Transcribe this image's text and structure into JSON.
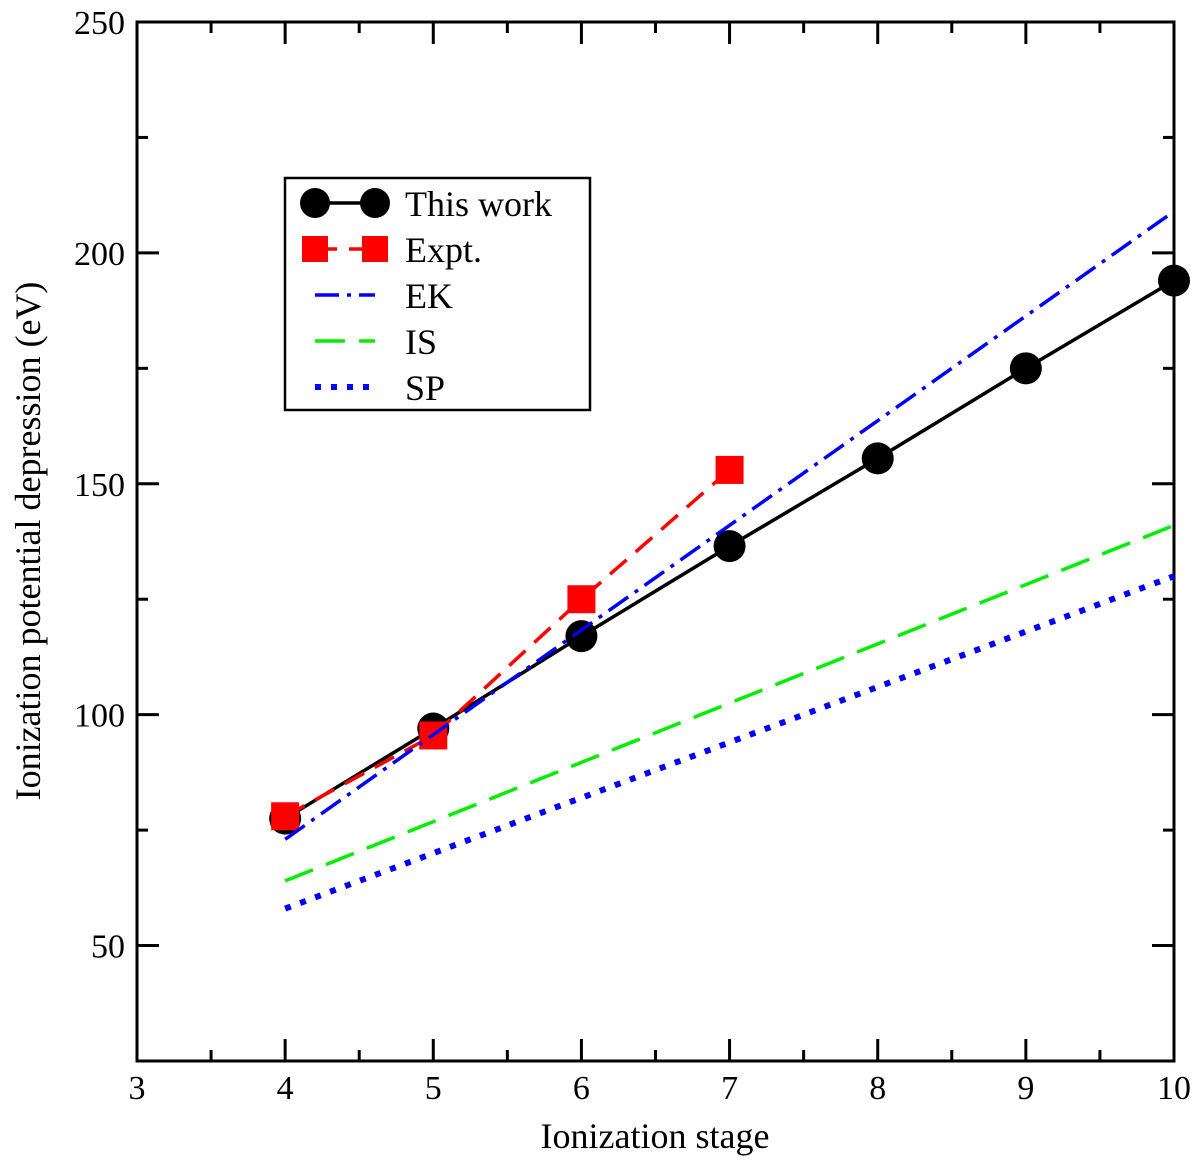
{
  "chart_data": {
    "type": "line",
    "xlabel": "Ionization stage",
    "ylabel": "Ionization potential depression (eV)",
    "xlim": [
      3,
      10
    ],
    "ylim": [
      25,
      250
    ],
    "xticks": [
      3,
      4,
      5,
      6,
      7,
      8,
      9,
      10
    ],
    "yticks": [
      50,
      100,
      150,
      200,
      250
    ],
    "legend_position": "upper-left",
    "series": [
      {
        "name": "This work",
        "style": "solid",
        "marker": "circle",
        "color": "#000000",
        "x": [
          4,
          5,
          6,
          7,
          8,
          9,
          10
        ],
        "y": [
          77.5,
          97,
          117,
          136.5,
          155.5,
          175,
          194
        ]
      },
      {
        "name": "Expt.",
        "style": "dashed",
        "marker": "square",
        "color": "#ff0000",
        "x": [
          4,
          5,
          6,
          7
        ],
        "y": [
          78,
          95.5,
          125,
          153
        ]
      },
      {
        "name": "EK",
        "style": "dashdot",
        "marker": "none",
        "color": "#0000ff",
        "x": [
          4,
          10
        ],
        "y": [
          73,
          209
        ]
      },
      {
        "name": "IS",
        "style": "longdash",
        "marker": "none",
        "color": "#00ee00",
        "x": [
          4,
          10
        ],
        "y": [
          64,
          141
        ]
      },
      {
        "name": "SP",
        "style": "dotted",
        "marker": "none",
        "color": "#0000ff",
        "x": [
          4,
          10
        ],
        "y": [
          58,
          130
        ]
      }
    ]
  }
}
